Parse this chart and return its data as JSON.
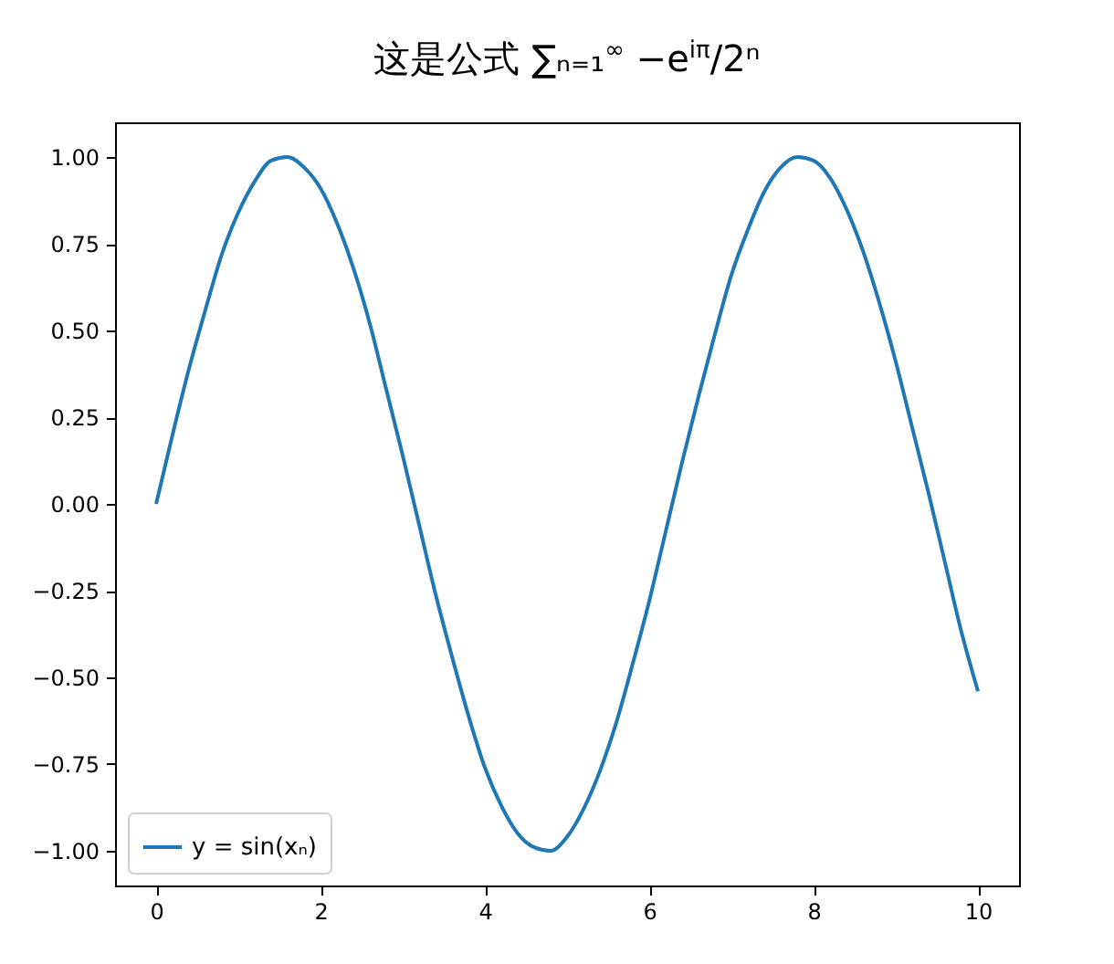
{
  "chart_data": {
    "type": "line",
    "title": "这是公式 ∑ₙ₌₁$^{∞}$ −e$^{iπ}$/2ⁿ",
    "x": [
      0,
      0.2,
      0.4,
      0.6,
      0.8,
      1.0,
      1.2,
      1.4,
      1.6,
      1.8,
      2.0,
      2.2,
      2.4,
      2.6,
      2.8,
      3.0,
      3.2,
      3.4,
      3.6,
      3.8,
      4.0,
      4.2,
      4.4,
      4.6,
      4.8,
      5.0,
      5.2,
      5.4,
      5.6,
      5.8,
      6.0,
      6.2,
      6.4,
      6.6,
      6.8,
      7.0,
      7.2,
      7.4,
      7.6,
      7.8,
      8.0,
      8.2,
      8.4,
      8.6,
      8.8,
      9.0,
      9.2,
      9.4,
      9.6,
      9.8,
      10.0
    ],
    "series": [
      {
        "name": "y = sin(xₙ)",
        "color": "#1f77b4",
        "values": [
          0,
          0.2,
          0.39,
          0.56,
          0.72,
          0.84,
          0.93,
          0.99,
          1.0,
          0.97,
          0.91,
          0.81,
          0.68,
          0.52,
          0.33,
          0.14,
          -0.06,
          -0.26,
          -0.44,
          -0.61,
          -0.76,
          -0.87,
          -0.95,
          -0.99,
          -1.0,
          -0.96,
          -0.88,
          -0.77,
          -0.63,
          -0.46,
          -0.28,
          -0.08,
          0.12,
          0.31,
          0.49,
          0.66,
          0.79,
          0.9,
          0.97,
          1.0,
          0.99,
          0.94,
          0.85,
          0.73,
          0.58,
          0.41,
          0.22,
          0.03,
          -0.17,
          -0.37,
          -0.54
        ]
      }
    ],
    "xlim": [
      -0.5,
      10.5
    ],
    "xticks": [
      0,
      2,
      4,
      6,
      8,
      10
    ],
    "ylim": [
      -1.1,
      1.1
    ],
    "yticks": [
      {
        "value": -1,
        "label": "−1.00"
      },
      {
        "value": -0.75,
        "label": "−0.75"
      },
      {
        "value": -0.5,
        "label": "−0.50"
      },
      {
        "value": -0.25,
        "label": "−0.25"
      },
      {
        "value": 0,
        "label": "0.00"
      },
      {
        "value": 0.25,
        "label": "0.25"
      },
      {
        "value": 0.5,
        "label": "0.50"
      },
      {
        "value": 0.75,
        "label": "0.75"
      },
      {
        "value": 1,
        "label": "1.00"
      }
    ],
    "grid": false,
    "legend": "bottom left"
  }
}
